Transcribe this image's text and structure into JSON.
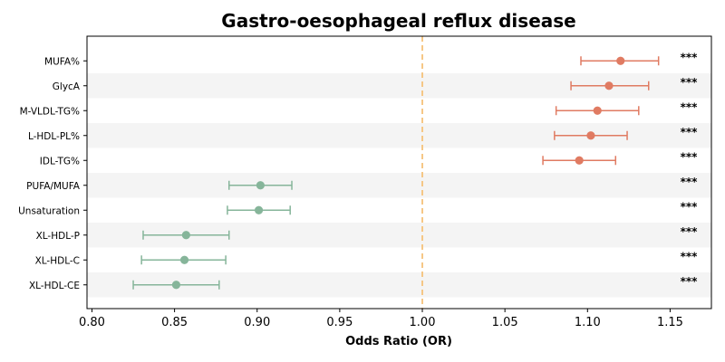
{
  "chart_data": {
    "type": "forest",
    "title": "Gastro-oesophageal reflux disease",
    "xlabel": "Odds Ratio (OR)",
    "xlim": [
      0.797,
      1.175
    ],
    "xticks": [
      "0.80",
      "0.85",
      "0.90",
      "0.95",
      "1.00",
      "1.05",
      "1.10",
      "1.15"
    ],
    "xtick_values": [
      0.8,
      0.85,
      0.9,
      0.95,
      1.0,
      1.05,
      1.1,
      1.15
    ],
    "reference_line": 1.0,
    "grid": false,
    "rows": [
      {
        "label": "MUFA%",
        "or": 1.12,
        "lower": 1.096,
        "upper": 1.143,
        "sig": "***"
      },
      {
        "label": "GlycA",
        "or": 1.113,
        "lower": 1.09,
        "upper": 1.137,
        "sig": "***"
      },
      {
        "label": "M-VLDL-TG%",
        "or": 1.106,
        "lower": 1.081,
        "upper": 1.131,
        "sig": "***"
      },
      {
        "label": "L-HDL-PL%",
        "or": 1.102,
        "lower": 1.08,
        "upper": 1.124,
        "sig": "***"
      },
      {
        "label": "IDL-TG%",
        "or": 1.095,
        "lower": 1.073,
        "upper": 1.117,
        "sig": "***"
      },
      {
        "label": "PUFA/MUFA",
        "or": 0.902,
        "lower": 0.883,
        "upper": 0.921,
        "sig": "***"
      },
      {
        "label": "Unsaturation",
        "or": 0.901,
        "lower": 0.882,
        "upper": 0.92,
        "sig": "***"
      },
      {
        "label": "XL-HDL-P",
        "or": 0.857,
        "lower": 0.831,
        "upper": 0.883,
        "sig": "***"
      },
      {
        "label": "XL-HDL-C",
        "or": 0.856,
        "lower": 0.83,
        "upper": 0.881,
        "sig": "***"
      },
      {
        "label": "XL-HDL-CE",
        "or": 0.851,
        "lower": 0.825,
        "upper": 0.877,
        "sig": "***"
      }
    ],
    "colors": {
      "risk": "#e07b62",
      "protective": "#86b59a",
      "reference": "#f5c27a",
      "band": "#f4f4f4"
    }
  }
}
